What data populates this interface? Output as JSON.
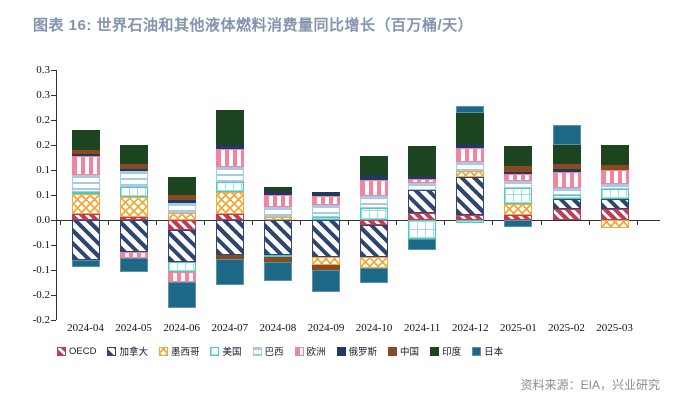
{
  "title": "图表 16: 世界石油和其他液体燃料消费量同比增长（百万桶/天）",
  "source": "资料来源：EIA，兴业研究",
  "accent_colors": {
    "title": "#8494ae",
    "oecd": "#c13b54",
    "canada": "#2f4572",
    "mexico": "#f2a93b",
    "usa": "#4ec9bd",
    "brazil": "#a6c9e8",
    "europe": "#f2849e",
    "russia": "#203a60",
    "china": "#8a4a21",
    "india": "#1c451f",
    "japan": "#1d6787"
  },
  "chart_data": {
    "type": "bar",
    "stacked": true,
    "grid": false,
    "legend_position": "bottom",
    "ylim": [
      -0.2,
      0.3
    ],
    "ytick_step": 0.05,
    "ytick_labels_top_to_bottom": [
      "0.3",
      "0.3",
      "0.2",
      "0.2",
      "0.1",
      "0.1",
      "0.0",
      "-0.1",
      "-0.1",
      "-0.2",
      "-0.2"
    ],
    "categories": [
      "2024-04",
      "2024-05",
      "2024-06",
      "2024-07",
      "2024-08",
      "2024-09",
      "2024-10",
      "2024-11",
      "2024-12",
      "2025-01",
      "2025-02",
      "2025-03"
    ],
    "series": [
      {
        "name": "OECD",
        "key": "oecd",
        "values": [
          0.012,
          0.007,
          -0.02,
          0.013,
          0.0,
          0.0,
          -0.01,
          0.014,
          0.01,
          0.011,
          0.022,
          0.022
        ]
      },
      {
        "name": "加拿大",
        "key": "canada",
        "values": [
          -0.08,
          -0.063,
          -0.063,
          -0.07,
          -0.07,
          -0.073,
          -0.063,
          0.046,
          0.077,
          0.0,
          0.021,
          0.021
        ]
      },
      {
        "name": "墨西哥",
        "key": "mexico",
        "values": [
          0.04,
          0.04,
          0.014,
          0.043,
          0.007,
          -0.017,
          -0.023,
          0.0,
          0.012,
          0.022,
          0.0,
          -0.015
        ]
      },
      {
        "name": "美国",
        "key": "usa",
        "values": [
          0.004,
          0.02,
          -0.02,
          0.02,
          -0.004,
          0.007,
          0.025,
          -0.037,
          -0.005,
          0.032,
          0.008,
          0.019
        ]
      },
      {
        "name": "巴西",
        "key": "brazil",
        "values": [
          0.035,
          0.031,
          0.021,
          0.03,
          0.02,
          0.023,
          0.023,
          0.015,
          0.017,
          0.013,
          0.014,
          0.011
        ]
      },
      {
        "name": "欧洲",
        "key": "europe",
        "values": [
          0.037,
          -0.013,
          -0.02,
          0.037,
          0.023,
          0.019,
          0.033,
          0.008,
          0.028,
          0.015,
          0.032,
          0.027
        ]
      },
      {
        "name": "俄罗斯",
        "key": "russia",
        "values": [
          0.004,
          0.005,
          0.005,
          0.007,
          0.008,
          0.008,
          0.01,
          0.005,
          0.008,
          0.004,
          0.005,
          0.0
        ]
      },
      {
        "name": "中国",
        "key": "china",
        "values": [
          0.009,
          0.01,
          0.01,
          -0.008,
          -0.01,
          -0.01,
          0.0,
          0.0,
          0.0,
          0.012,
          0.011,
          0.011
        ]
      },
      {
        "name": "印度",
        "key": "india",
        "values": [
          0.04,
          0.037,
          0.037,
          0.07,
          0.008,
          0.0,
          0.038,
          0.06,
          0.062,
          0.04,
          0.037,
          0.04
        ]
      },
      {
        "name": "日本",
        "key": "japan",
        "values": [
          -0.013,
          -0.027,
          -0.053,
          -0.052,
          -0.037,
          -0.043,
          -0.03,
          -0.023,
          0.015,
          -0.013,
          0.04,
          0.0
        ]
      }
    ]
  }
}
